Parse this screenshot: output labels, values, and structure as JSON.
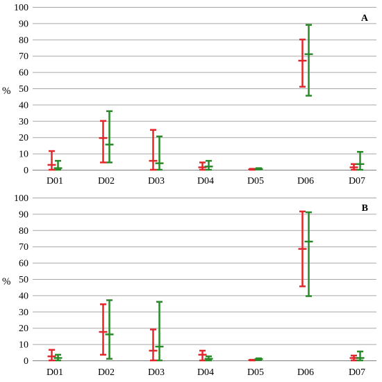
{
  "chart_data": [
    {
      "type": "error-bar",
      "panel": "A",
      "ylabel": "%",
      "ylim": [
        0,
        100
      ],
      "yticks": [
        0,
        10,
        20,
        30,
        40,
        50,
        60,
        70,
        80,
        90,
        100
      ],
      "grid": true,
      "categories": [
        "D01",
        "D02",
        "D03",
        "D04",
        "D05",
        "D06",
        "D07"
      ],
      "series": [
        {
          "color": "#e0272c",
          "mid": [
            3,
            19.5,
            5.5,
            1.5,
            0.3,
            67,
            1.5
          ],
          "low": [
            0,
            4.5,
            0,
            0,
            0,
            51,
            0
          ],
          "high": [
            11.5,
            30,
            24.5,
            4.5,
            0.6,
            80,
            3.5
          ]
        },
        {
          "color": "#2a8a2a",
          "mid": [
            1,
            15.5,
            4,
            2,
            0.5,
            71,
            3.5
          ],
          "low": [
            0,
            4.5,
            0,
            0,
            0.2,
            45.5,
            0
          ],
          "high": [
            5.5,
            36,
            20.5,
            5.5,
            1,
            89,
            11
          ]
        }
      ]
    },
    {
      "type": "error-bar",
      "panel": "B",
      "ylabel": "%",
      "ylim": [
        0,
        100
      ],
      "yticks": [
        0,
        10,
        20,
        30,
        40,
        50,
        60,
        70,
        80,
        90,
        100
      ],
      "grid": true,
      "categories": [
        "D01",
        "D02",
        "D03",
        "D04",
        "D05",
        "D06",
        "D07"
      ],
      "series": [
        {
          "color": "#e0272c",
          "mid": [
            2.5,
            17.5,
            6,
            3.5,
            0.2,
            68.5,
            1.5
          ],
          "low": [
            0,
            3.5,
            0,
            0,
            0,
            45.5,
            0
          ],
          "high": [
            6.5,
            34.5,
            19,
            6,
            0.4,
            91.5,
            3
          ]
        },
        {
          "color": "#2a8a2a",
          "mid": [
            1.5,
            16,
            8.5,
            1,
            0.8,
            73,
            1.5
          ],
          "low": [
            0,
            1,
            0,
            0,
            0.2,
            39.5,
            0
          ],
          "high": [
            3.5,
            37,
            36,
            2.5,
            1.3,
            91,
            5.5
          ]
        }
      ]
    }
  ]
}
